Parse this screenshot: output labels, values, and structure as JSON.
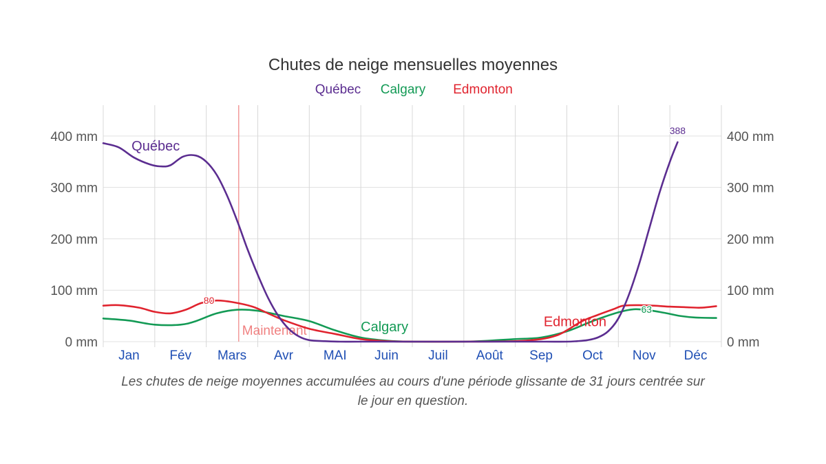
{
  "chart_data": {
    "type": "line",
    "title": "Chutes de neige mensuelles moyennes",
    "caption": [
      "Les chutes de neige moyennes accumulées au cours d'une période glissante de 31 jours centrée sur",
      "le jour en question."
    ],
    "categories": [
      "Jan",
      "Fév",
      "Mars",
      "Avr",
      "MAI",
      "Juin",
      "Juil",
      "Août",
      "Sep",
      "Oct",
      "Nov",
      "Déc"
    ],
    "ylim": [
      0,
      460
    ],
    "y_ticks": [
      0,
      100,
      200,
      300,
      400
    ],
    "y_tick_labels": [
      "0 mm",
      "100 mm",
      "200 mm",
      "300 mm",
      "400 mm"
    ],
    "y_axes": "left and right",
    "grid": true,
    "legend": "top-center",
    "now_marker": {
      "label": "Maintenant",
      "x": 2.63,
      "color": "#f08080"
    },
    "series": [
      {
        "name": "Québec",
        "color": "#5b2d90",
        "x": [
          0,
          0.3,
          0.6,
          0.9,
          1.1,
          1.3,
          1.55,
          1.8,
          2.0,
          2.2,
          2.4,
          2.6,
          2.8,
          3.0,
          3.2,
          3.4,
          3.6,
          3.8,
          4.0,
          4.3,
          4.6,
          5.0,
          6.0,
          7.0,
          8.0,
          8.6,
          9.0,
          9.2,
          9.4,
          9.6,
          9.8,
          10.0,
          10.2,
          10.4,
          10.6,
          10.8,
          11.0,
          11.15
        ],
        "y": [
          386,
          378,
          358,
          345,
          341,
          343,
          360,
          362,
          350,
          325,
          285,
          235,
          180,
          130,
          85,
          50,
          25,
          10,
          3,
          1,
          0,
          0,
          0,
          0,
          0,
          0,
          0,
          1,
          3,
          8,
          20,
          45,
          90,
          150,
          220,
          290,
          350,
          388
        ]
      },
      {
        "name": "Calgary",
        "color": "#139a55",
        "x": [
          0,
          0.5,
          1.0,
          1.5,
          1.8,
          2.2,
          2.6,
          3.0,
          3.5,
          4.0,
          4.5,
          5.0,
          5.5,
          6.0,
          7.0,
          7.5,
          8.0,
          8.5,
          9.0,
          9.5,
          10.0,
          10.3,
          10.6,
          10.9,
          11.2,
          11.5,
          11.9
        ],
        "y": [
          45,
          41,
          33,
          33,
          40,
          55,
          62,
          60,
          50,
          40,
          22,
          8,
          2,
          0,
          0,
          2,
          5,
          8,
          20,
          40,
          57,
          63,
          61,
          56,
          50,
          47,
          46
        ]
      },
      {
        "name": "Edmonton",
        "color": "#e0232e",
        "x": [
          0,
          0.3,
          0.7,
          1.0,
          1.3,
          1.6,
          1.9,
          2.2,
          2.5,
          2.9,
          3.2,
          3.5,
          4.0,
          4.5,
          5.0,
          5.5,
          6.0,
          7.0,
          8.0,
          8.5,
          8.8,
          9.0,
          9.3,
          9.6,
          9.9,
          10.1,
          10.4,
          10.7,
          11.0,
          11.3,
          11.6,
          11.9
        ],
        "y": [
          70,
          71,
          66,
          58,
          55,
          62,
          75,
          80,
          77,
          68,
          55,
          42,
          25,
          15,
          5,
          1,
          0,
          0,
          1,
          5,
          12,
          22,
          40,
          52,
          63,
          70,
          71,
          70,
          68,
          67,
          66,
          69
        ]
      }
    ],
    "series_labels": [
      {
        "series": "Québec",
        "text": "Québec",
        "x": 0.55,
        "y": 372
      },
      {
        "series": "Calgary",
        "text": "Calgary",
        "x": 5.0,
        "y": 20
      },
      {
        "series": "Edmonton",
        "text": "Edmonton",
        "x": 8.55,
        "y": 30
      }
    ],
    "value_labels": [
      {
        "series": "Québec",
        "text": "388",
        "x": 11.15,
        "y": 388,
        "anchor": "middle",
        "dy": -12
      },
      {
        "series": "Edmonton",
        "text": "80",
        "x": 2.25,
        "y": 80,
        "anchor": "end",
        "dy": 5
      },
      {
        "series": "Calgary",
        "text": "63",
        "x": 10.35,
        "y": 63,
        "anchor": "start",
        "dy": 5
      }
    ]
  }
}
